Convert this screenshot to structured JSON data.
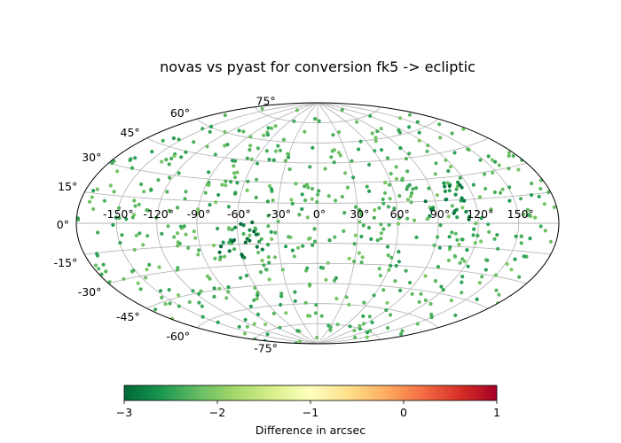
{
  "chart_data": {
    "type": "scatter",
    "projection": "aitoff",
    "title": "novas vs pyast for conversion fk5 -> ecliptic",
    "lon_tick_labels": [
      "-150°",
      "-120°",
      "-90°",
      "-60°",
      "-30°",
      "0°",
      "30°",
      "60°",
      "90°",
      "120°",
      "150°"
    ],
    "lat_tick_labels": [
      "-75°",
      "-60°",
      "-45°",
      "-30°",
      "-15°",
      "0°",
      "15°",
      "30°",
      "45°",
      "60°",
      "75°"
    ],
    "lon_ticks": [
      -150,
      -120,
      -90,
      -60,
      -30,
      0,
      30,
      60,
      90,
      120,
      150
    ],
    "lat_ticks": [
      -75,
      -60,
      -45,
      -30,
      -15,
      0,
      15,
      30,
      45,
      60,
      75
    ],
    "grid": true,
    "colormap": "RdYlGn_r",
    "clim": [
      -3,
      1
    ],
    "colorbar": {
      "label": "Difference in arcsec",
      "ticks": [
        -3,
        -2,
        -1,
        0,
        1
      ],
      "tick_labels": [
        "−3",
        "−2",
        "−1",
        "0",
        "1"
      ],
      "orientation": "horizontal",
      "placement": "bottom"
    },
    "points": {
      "count": 600,
      "distribution": "uniform over the sphere",
      "typical_value": -2.3,
      "value_range": [
        -2.9,
        -2.0
      ],
      "clusters": [
        {
          "lon": 100,
          "lat": 15,
          "value": -2.8
        },
        {
          "lon": -60,
          "lat": -12,
          "value": -2.85
        }
      ]
    }
  }
}
